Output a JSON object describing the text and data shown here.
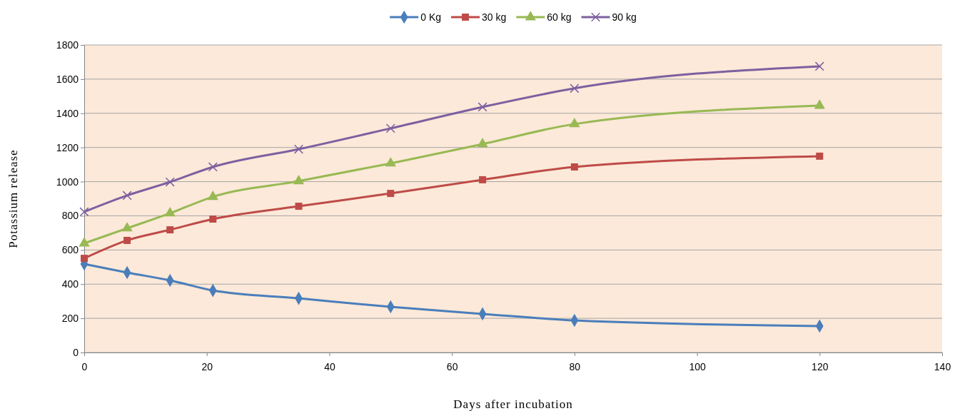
{
  "chart_data": {
    "type": "line",
    "xlabel": "Days after incubation",
    "ylabel": "Potassium release",
    "x": [
      0,
      7,
      14,
      21,
      35,
      50,
      65,
      80,
      120
    ],
    "xlim": [
      0,
      140
    ],
    "xticks": [
      0,
      20,
      40,
      60,
      80,
      100,
      120,
      140
    ],
    "ylim": [
      0,
      1800
    ],
    "yticks": [
      0,
      200,
      400,
      600,
      800,
      1000,
      1200,
      1400,
      1600,
      1800
    ],
    "grid": "y",
    "legend": "top",
    "series": [
      {
        "name": "0 Kg",
        "color": "#4a7ebb",
        "marker": "diamond",
        "values": [
          518,
          468,
          422,
          363,
          317,
          267,
          226,
          188,
          155
        ]
      },
      {
        "name": "30 kg",
        "color": "#be4b48",
        "marker": "square",
        "values": [
          551,
          656,
          718,
          781,
          856,
          931,
          1011,
          1086,
          1149
        ]
      },
      {
        "name": "60 kg",
        "color": "#98b954",
        "marker": "triangle",
        "values": [
          639,
          727,
          815,
          911,
          1003,
          1107,
          1220,
          1337,
          1445
        ]
      },
      {
        "name": "90 kg",
        "color": "#7d60a0",
        "marker": "cross",
        "values": [
          823,
          919,
          998,
          1086,
          1190,
          1312,
          1437,
          1546,
          1675
        ]
      }
    ]
  }
}
